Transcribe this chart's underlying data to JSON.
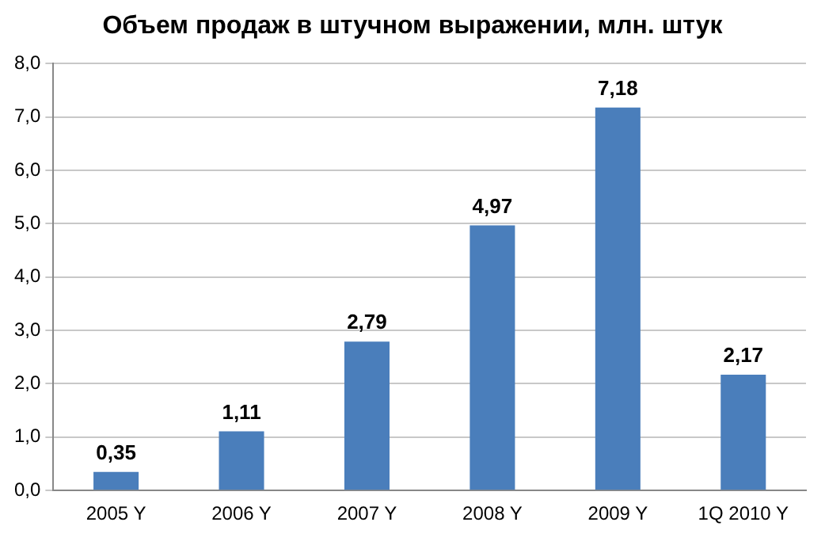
{
  "chart_data": {
    "type": "bar",
    "title": "Объем продаж в штучном выражении, млн. штук",
    "categories": [
      "2005 Y",
      "2006 Y",
      "2007 Y",
      "2008 Y",
      "2009 Y",
      "1Q 2010 Y"
    ],
    "values": [
      0.35,
      1.11,
      2.79,
      4.97,
      7.18,
      2.17
    ],
    "value_labels": [
      "0,35",
      "1,11",
      "2,79",
      "4,97",
      "7,18",
      "2,17"
    ],
    "color": "#4a7ebb",
    "ylim": [
      0,
      8
    ],
    "yticks": [
      {
        "value": 0,
        "label": "0,0"
      },
      {
        "value": 1,
        "label": "1,0"
      },
      {
        "value": 2,
        "label": "2,0"
      },
      {
        "value": 3,
        "label": "3,0"
      },
      {
        "value": 4,
        "label": "4,0"
      },
      {
        "value": 5,
        "label": "5,0"
      },
      {
        "value": 6,
        "label": "6,0"
      },
      {
        "value": 7,
        "label": "7,0"
      },
      {
        "value": 8,
        "label": "8,0"
      }
    ],
    "grid": "y",
    "legend": false
  }
}
